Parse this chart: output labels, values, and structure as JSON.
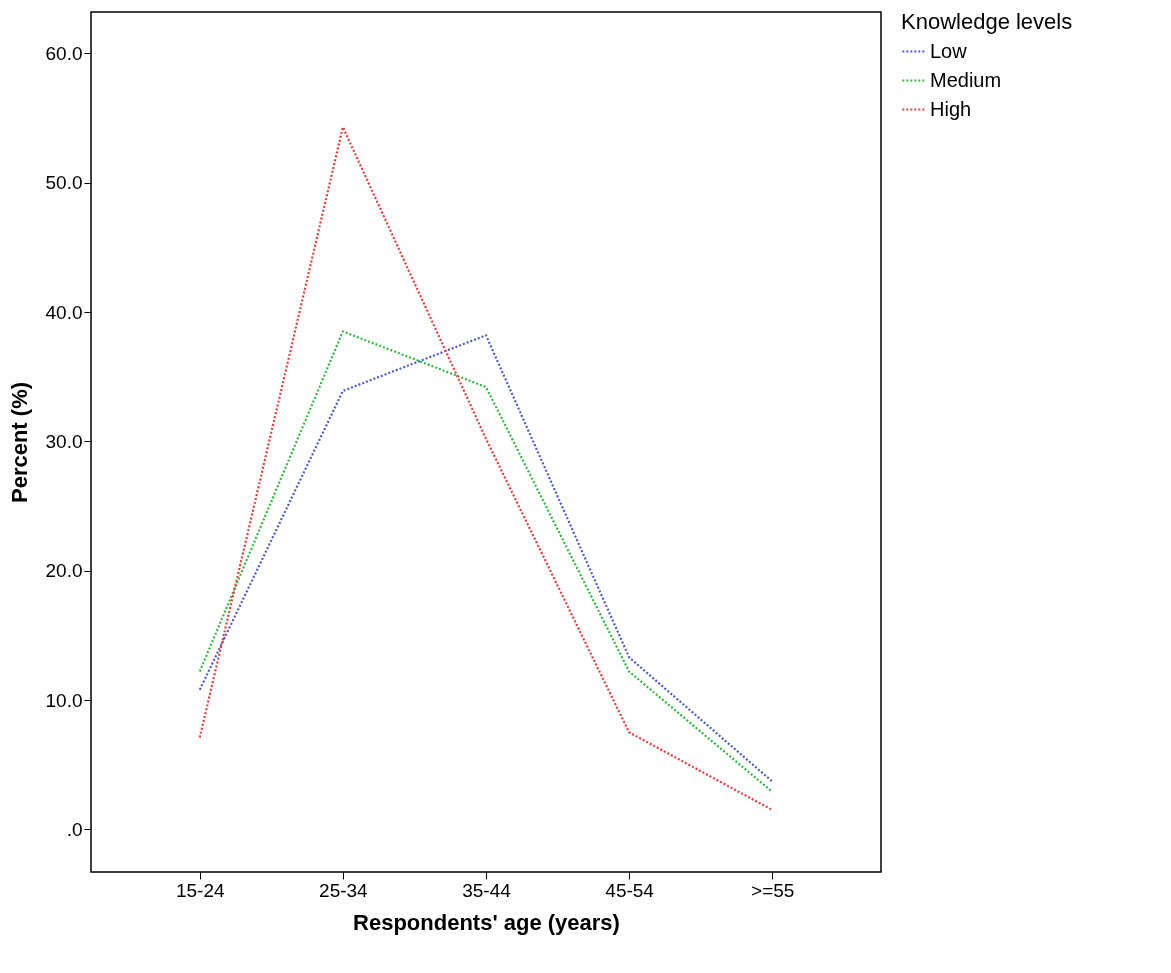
{
  "chart_data": {
    "type": "line",
    "xlabel": "Respondents' age (years)",
    "ylabel": "Percent (%)",
    "legend_title": "Knowledge levels",
    "legend": "top right",
    "line_style": "dotted",
    "marker": "none",
    "grid": false,
    "categories": [
      "15-24",
      "25-34",
      "35-44",
      "45-54",
      ">=55"
    ],
    "ylim": [
      -3.3,
      63.2
    ],
    "yticks": [
      {
        "value": 0,
        "label": ".0"
      },
      {
        "value": 10,
        "label": "10.0"
      },
      {
        "value": 20,
        "label": "20.0"
      },
      {
        "value": 30,
        "label": "30.0"
      },
      {
        "value": 40,
        "label": "40.0"
      },
      {
        "value": 50,
        "label": "50.0"
      },
      {
        "value": 60,
        "label": "60.0"
      }
    ],
    "series": [
      {
        "name": "Low",
        "color": "#4a5ccc",
        "values": [
          10.8,
          33.9,
          38.2,
          13.3,
          3.7
        ]
      },
      {
        "name": "Medium",
        "color": "#2fba3a",
        "values": [
          12.2,
          38.5,
          34.2,
          12.2,
          2.9
        ]
      },
      {
        "name": "High",
        "color": "#f03a3a",
        "values": [
          7.1,
          54.3,
          30.2,
          7.5,
          1.5
        ]
      }
    ]
  }
}
